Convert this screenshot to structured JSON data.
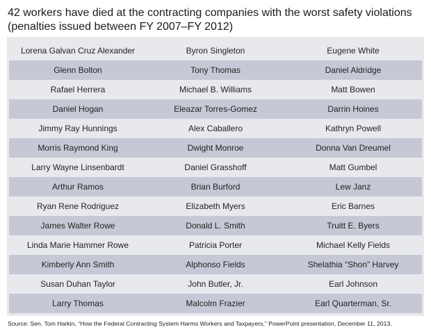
{
  "title": {
    "line1": "42 workers have died at the contracting companies with the worst safety violations",
    "line2": "(penalties issued between FY 2007–FY 2012)"
  },
  "rows": [
    [
      "Lorena Galvan Cruz Alexander",
      "Byron Singleton",
      "Eugene White"
    ],
    [
      "Glenn Bolton",
      "Tony Thomas",
      "Daniel Aldridge"
    ],
    [
      "Rafael Herrera",
      "Michael B. Williams",
      "Matt Bowen"
    ],
    [
      "Daniel Hogan",
      "Eleazar Torres-Gomez",
      "Darrin Hoines"
    ],
    [
      "Jimmy Ray Hunnings",
      "Alex Caballero",
      "Kathryn Powell"
    ],
    [
      "Morris Raymond King",
      "Dwight Monroe",
      "Donna Van Dreumel"
    ],
    [
      "Larry Wayne Linsenbardt",
      "Daniel Grasshoff",
      "Matt Gumbel"
    ],
    [
      "Arthur Ramos",
      "Brian Burford",
      "Lew Janz"
    ],
    [
      "Ryan Rene Rodriguez",
      "Elizabeth Myers",
      "Eric Barnes"
    ],
    [
      "James Walter Rowe",
      "Donald L. Smith",
      "Truitt E. Byers"
    ],
    [
      "Linda Marie Hammer Rowe",
      "Patricia Porter",
      "Michael Kelly Fields"
    ],
    [
      "Kimberly Ann Smith",
      "Alphonso Fields",
      "Shelathia “Shon” Harvey"
    ],
    [
      "Susan Duhan Taylor",
      "John Butler, Jr.",
      "Earl Johnson"
    ],
    [
      "Larry Thomas",
      "Malcolm Frazier",
      "Earl Quarterman, Sr."
    ]
  ],
  "source": "Source: Sen. Tom Harkin, “How the Federal Contracting System Harms Workers and Taxpayers,” PowerPoint presentation, December 11, 2013.",
  "colors": {
    "panel_background": "#e8e9ed",
    "shaded_row": "#c6c9d5"
  }
}
